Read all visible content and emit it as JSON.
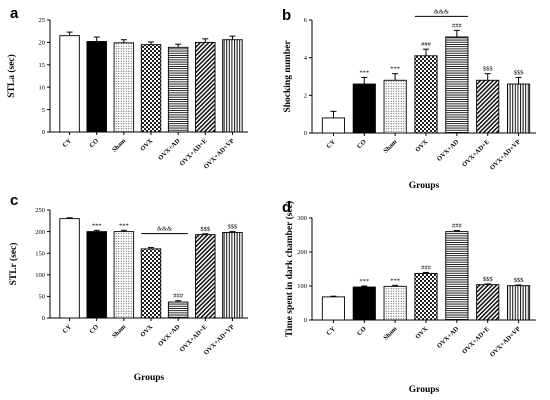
{
  "chart_data": [
    {
      "panel": "a",
      "type": "bar",
      "ylabel": "STLa (sec)",
      "xlabel": "",
      "categories": [
        "CY",
        "CO",
        "Sham",
        "OVX",
        "OVX+AD",
        "OVX+AD+E",
        "OVX+AD+VP"
      ],
      "values": [
        21.5,
        20.2,
        19.9,
        19.5,
        18.9,
        20.0,
        20.6
      ],
      "errors": [
        0.8,
        1.0,
        0.7,
        0.6,
        0.7,
        0.8,
        0.8
      ],
      "annotations": [
        "",
        "",
        "",
        "",
        "",
        "",
        ""
      ],
      "ylim": [
        0,
        25
      ],
      "yticks": [
        0,
        5,
        10,
        15,
        20,
        25
      ],
      "bracket": null
    },
    {
      "panel": "b",
      "type": "bar",
      "ylabel": "Shocking number",
      "xlabel": "Groups",
      "categories": [
        "CY",
        "CO",
        "Sham",
        "OVX",
        "OVX+AD",
        "OVX+AD+E",
        "OVX+AD+VP"
      ],
      "values": [
        0.8,
        2.6,
        2.8,
        4.1,
        5.1,
        2.8,
        2.6
      ],
      "errors": [
        0.35,
        0.35,
        0.35,
        0.35,
        0.35,
        0.35,
        0.35
      ],
      "annotations": [
        "",
        "***",
        "***",
        "###",
        "###",
        "$$$",
        "$$$"
      ],
      "ylim": [
        0,
        6
      ],
      "yticks": [
        0,
        2,
        4,
        6
      ],
      "bracket": {
        "from": 3,
        "to": 4,
        "label": "&&&"
      }
    },
    {
      "panel": "c",
      "type": "bar",
      "ylabel": "STLr (sec)",
      "xlabel": "Groups",
      "categories": [
        "CY",
        "CO",
        "Sham",
        "OVX",
        "OVX+AD",
        "OVX+AD+E",
        "OVX+AD+VP"
      ],
      "values": [
        230,
        200,
        200,
        160,
        37,
        193,
        198
      ],
      "errors": [
        2,
        3,
        3,
        3,
        3,
        2,
        2
      ],
      "annotations": [
        "",
        "***",
        "***",
        "",
        "###",
        "$$$",
        "$$$"
      ],
      "ylim": [
        0,
        250
      ],
      "yticks": [
        0,
        50,
        100,
        150,
        200,
        250
      ],
      "bracket": {
        "from": 3,
        "to": 4,
        "label": "&&&"
      }
    },
    {
      "panel": "d",
      "type": "bar",
      "ylabel": "Time spent in dark chamber (sec)",
      "xlabel": "Groups",
      "categories": [
        "CY",
        "CO",
        "Sham",
        "OVX",
        "OVX+AD",
        "OVX+AD+E",
        "OVX+AD+VP"
      ],
      "values": [
        68,
        97,
        99,
        137,
        260,
        104,
        101
      ],
      "errors": [
        2,
        3,
        3,
        3,
        3,
        2,
        2
      ],
      "annotations": [
        "",
        "***",
        "***",
        "###",
        "###",
        "$$$",
        "$$$"
      ],
      "ylim": [
        0,
        300
      ],
      "yticks": [
        0,
        100,
        200,
        300
      ],
      "bracket": null
    }
  ],
  "bar_styles": [
    "white",
    "black",
    "dots",
    "checker",
    "hstripes",
    "diagonal",
    "vstripes"
  ]
}
